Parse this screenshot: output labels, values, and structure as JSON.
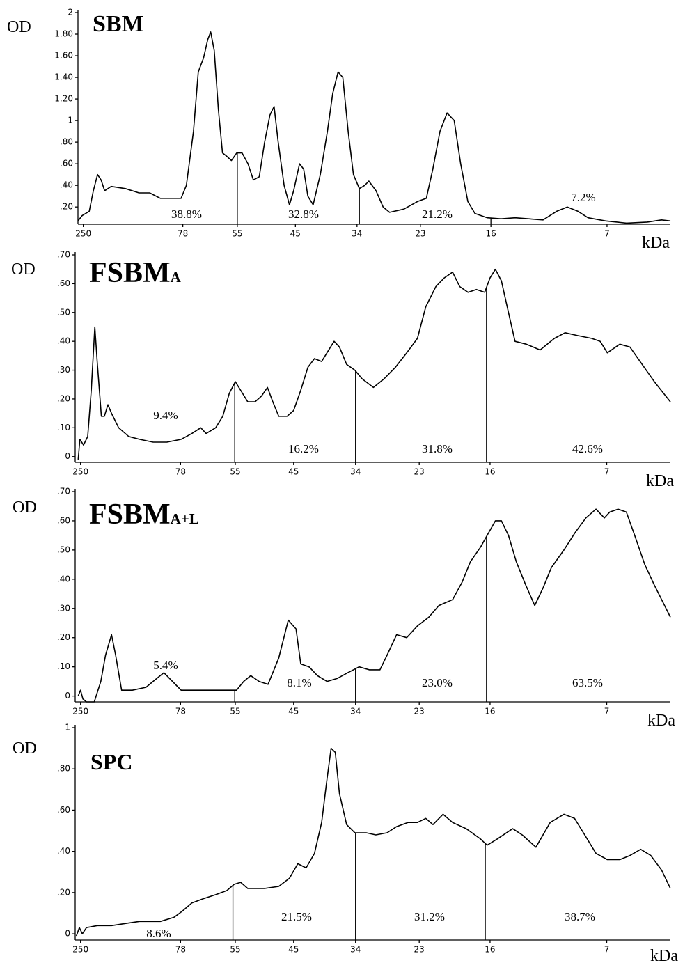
{
  "chart_data": [
    {
      "type": "line",
      "title": "SBM",
      "ylabel": "OD",
      "xlabel": "kDa",
      "color": "#000000",
      "xlim": [
        0,
        100
      ],
      "xticks": [
        {
          "value": 0.9,
          "label": "250"
        },
        {
          "value": 17.7,
          "label": "78"
        },
        {
          "value": 26.9,
          "label": "55"
        },
        {
          "value": 36.7,
          "label": "45"
        },
        {
          "value": 47.1,
          "label": "34"
        },
        {
          "value": 57.8,
          "label": "23"
        },
        {
          "value": 69.7,
          "label": "16"
        },
        {
          "value": 89.3,
          "label": "7"
        }
      ],
      "ylim": [
        0.04,
        2
      ],
      "yticks": [
        {
          "value": 0.2,
          "label": ".20"
        },
        {
          "value": 0.4,
          "label": ".40"
        },
        {
          "value": 0.6,
          "label": ".60"
        },
        {
          "value": 0.8,
          "label": ".80"
        },
        1,
        {
          "value": 1.2,
          "label": "1.20"
        },
        {
          "value": 1.4,
          "label": "1.40"
        },
        {
          "value": 1.6,
          "label": "1.60"
        },
        {
          "value": 1.8,
          "label": "1.80"
        },
        2
      ],
      "dividers": [
        26.9,
        47.5,
        69.7
      ],
      "annotations": [
        "38.8%",
        "32.8%",
        "21.2%",
        "7.2%"
      ],
      "x": [
        0,
        0.7,
        1.9,
        2.6,
        3.3,
        3.9,
        4.5,
        5.6,
        8.0,
        10.3,
        12.1,
        13.9,
        17.4,
        18.3,
        19.5,
        20.3,
        21.2,
        21.9,
        22.4,
        23.0,
        23.7,
        24.4,
        25.1,
        25.9,
        26.8,
        27.7,
        28.7,
        29.6,
        30.6,
        31.5,
        32.4,
        33.1,
        33.8,
        34.8,
        35.7,
        36.4,
        37.4,
        38.1,
        38.8,
        39.7,
        40.9,
        42.1,
        43.0,
        43.9,
        44.7,
        45.6,
        46.5,
        47.5,
        48.4,
        49.1,
        50.3,
        51.5,
        52.6,
        55.0,
        57.3,
        58.8,
        59.9,
        61.1,
        62.3,
        63.5,
        64.6,
        65.8,
        67.0,
        69.1,
        71.4,
        73.8,
        76.1,
        78.5,
        80.8,
        82.6,
        84.4,
        86.1,
        89.1,
        92.6,
        96.1,
        98.5,
        100
      ],
      "values": [
        0.07,
        0.12,
        0.16,
        0.35,
        0.5,
        0.45,
        0.35,
        0.39,
        0.37,
        0.33,
        0.33,
        0.28,
        0.28,
        0.4,
        0.9,
        1.45,
        1.58,
        1.75,
        1.82,
        1.65,
        1.1,
        0.7,
        0.67,
        0.63,
        0.7,
        0.7,
        0.6,
        0.45,
        0.48,
        0.8,
        1.05,
        1.13,
        0.8,
        0.4,
        0.22,
        0.35,
        0.6,
        0.55,
        0.3,
        0.22,
        0.5,
        0.9,
        1.25,
        1.45,
        1.4,
        0.9,
        0.5,
        0.37,
        0.4,
        0.44,
        0.35,
        0.2,
        0.15,
        0.18,
        0.25,
        0.28,
        0.55,
        0.9,
        1.07,
        1.0,
        0.6,
        0.25,
        0.14,
        0.1,
        0.09,
        0.1,
        0.09,
        0.08,
        0.16,
        0.2,
        0.16,
        0.1,
        0.07,
        0.05,
        0.06,
        0.08,
        0.07
      ]
    },
    {
      "type": "line",
      "title": "FSBM",
      "title_subscript": "A",
      "ylabel": "OD",
      "xlabel": "kDa",
      "color": "#000000",
      "xlim": [
        0,
        100
      ],
      "xticks": [
        {
          "value": 0.9,
          "label": "250"
        },
        {
          "value": 17.7,
          "label": "78"
        },
        {
          "value": 26.9,
          "label": "55"
        },
        {
          "value": 36.7,
          "label": "45"
        },
        {
          "value": 47.1,
          "label": "34"
        },
        {
          "value": 57.8,
          "label": "23"
        },
        {
          "value": 69.7,
          "label": "16"
        },
        {
          "value": 89.3,
          "label": "7"
        }
      ],
      "ylim": [
        -0.02,
        0.7
      ],
      "yticks": [
        0,
        {
          "value": 0.1,
          "label": ".10"
        },
        {
          "value": 0.2,
          "label": ".20"
        },
        {
          "value": 0.3,
          "label": ".30"
        },
        {
          "value": 0.4,
          "label": ".40"
        },
        {
          "value": 0.5,
          "label": ".50"
        },
        {
          "value": 0.6,
          "label": ".60"
        },
        {
          "value": 0.7,
          "label": ".70"
        }
      ],
      "dividers": [
        26.8,
        47.1,
        69.1
      ],
      "annotations": [
        "9.4%",
        "16.2%",
        "31.8%",
        "42.6%"
      ],
      "x": [
        0.5,
        0.8,
        1.4,
        2.1,
        2.7,
        3.3,
        3.7,
        4.4,
        4.9,
        5.5,
        6.1,
        7.3,
        9.0,
        10.8,
        13.1,
        15.4,
        17.8,
        19.6,
        21.1,
        22.0,
        23.6,
        24.8,
        25.9,
        26.9,
        27.8,
        29.0,
        30.2,
        31.3,
        32.3,
        33.2,
        34.2,
        35.6,
        36.7,
        37.9,
        39.1,
        40.2,
        41.4,
        42.6,
        43.5,
        44.4,
        45.6,
        47.0,
        48.2,
        50.1,
        51.9,
        53.8,
        55.7,
        57.5,
        58.9,
        60.6,
        62.0,
        63.4,
        64.6,
        66.0,
        67.4,
        68.8,
        69.7,
        70.6,
        71.6,
        72.8,
        73.9,
        75.8,
        78.1,
        80.5,
        82.3,
        84.4,
        86.8,
        88.2,
        89.4,
        91.5,
        93.2,
        94.9,
        97.3,
        100
      ],
      "values": [
        -0.01,
        0.06,
        0.04,
        0.07,
        0.23,
        0.45,
        0.33,
        0.14,
        0.14,
        0.18,
        0.15,
        0.1,
        0.07,
        0.06,
        0.05,
        0.05,
        0.06,
        0.08,
        0.1,
        0.08,
        0.1,
        0.14,
        0.22,
        0.26,
        0.23,
        0.19,
        0.19,
        0.21,
        0.24,
        0.19,
        0.14,
        0.14,
        0.16,
        0.23,
        0.31,
        0.34,
        0.33,
        0.37,
        0.4,
        0.38,
        0.32,
        0.3,
        0.27,
        0.24,
        0.27,
        0.31,
        0.36,
        0.41,
        0.52,
        0.59,
        0.62,
        0.64,
        0.59,
        0.57,
        0.58,
        0.57,
        0.62,
        0.65,
        0.61,
        0.5,
        0.4,
        0.39,
        0.37,
        0.41,
        0.43,
        0.42,
        0.41,
        0.4,
        0.36,
        0.39,
        0.38,
        0.33,
        0.26,
        0.19
      ]
    },
    {
      "type": "line",
      "title": "FSBM",
      "title_subscript": "A+L",
      "ylabel": "OD",
      "xlabel": "kDa",
      "color": "#000000",
      "xlim": [
        0,
        100
      ],
      "xticks": [
        {
          "value": 0.9,
          "label": "250"
        },
        {
          "value": 17.7,
          "label": "78"
        },
        {
          "value": 26.9,
          "label": "55"
        },
        {
          "value": 36.7,
          "label": "45"
        },
        {
          "value": 47.1,
          "label": "34"
        },
        {
          "value": 57.8,
          "label": "23"
        },
        {
          "value": 69.7,
          "label": "16"
        },
        {
          "value": 89.3,
          "label": "7"
        }
      ],
      "ylim": [
        -0.02,
        0.7
      ],
      "yticks": [
        0,
        {
          "value": 0.1,
          "label": ".10"
        },
        {
          "value": 0.2,
          "label": ".20"
        },
        {
          "value": 0.3,
          "label": ".30"
        },
        {
          "value": 0.4,
          "label": ".40"
        },
        {
          "value": 0.5,
          "label": ".50"
        },
        {
          "value": 0.6,
          "label": ".60"
        },
        {
          "value": 0.7,
          "label": ".70"
        }
      ],
      "dividers": [
        26.8,
        47.1,
        69.1
      ],
      "annotations": [
        "5.4%",
        "8.1%",
        "23.0%",
        "63.5%"
      ],
      "x": [
        0.5,
        0.9,
        1.3,
        1.9,
        3.2,
        4.3,
        5.1,
        6.1,
        6.8,
        7.8,
        9.6,
        11.9,
        13.7,
        14.9,
        17.8,
        21.3,
        24.8,
        27.1,
        28.3,
        29.5,
        30.9,
        32.4,
        34.2,
        35.8,
        37.1,
        37.9,
        39.3,
        40.7,
        42.3,
        44.0,
        45.8,
        47.7,
        49.4,
        51.2,
        52.4,
        54.0,
        55.7,
        57.5,
        59.4,
        61.1,
        63.4,
        65.0,
        66.4,
        68.1,
        69.2,
        70.6,
        71.6,
        72.8,
        74.1,
        75.7,
        77.2,
        78.6,
        80.0,
        82.1,
        84.0,
        85.8,
        87.5,
        88.9,
        89.8,
        91.2,
        92.6,
        94.0,
        95.7,
        97.3,
        100
      ],
      "values": [
        0.0,
        0.02,
        -0.01,
        -0.02,
        -0.02,
        0.05,
        0.14,
        0.21,
        0.14,
        0.02,
        0.02,
        0.03,
        0.06,
        0.08,
        0.02,
        0.02,
        0.02,
        0.02,
        0.05,
        0.07,
        0.05,
        0.04,
        0.13,
        0.26,
        0.23,
        0.11,
        0.1,
        0.07,
        0.05,
        0.06,
        0.08,
        0.1,
        0.09,
        0.09,
        0.14,
        0.21,
        0.2,
        0.24,
        0.27,
        0.31,
        0.33,
        0.39,
        0.46,
        0.51,
        0.55,
        0.6,
        0.6,
        0.55,
        0.46,
        0.38,
        0.31,
        0.37,
        0.44,
        0.5,
        0.56,
        0.61,
        0.64,
        0.61,
        0.63,
        0.64,
        0.63,
        0.55,
        0.45,
        0.38,
        0.27
      ]
    },
    {
      "type": "line",
      "title": "SPC",
      "ylabel": "OD",
      "xlabel": "kDa",
      "color": "#000000",
      "xlim": [
        0,
        100
      ],
      "xticks": [
        {
          "value": 0.9,
          "label": "250"
        },
        {
          "value": 17.7,
          "label": "78"
        },
        {
          "value": 26.9,
          "label": "55"
        },
        {
          "value": 36.7,
          "label": "45"
        },
        {
          "value": 47.1,
          "label": "34"
        },
        {
          "value": 57.8,
          "label": "23"
        },
        {
          "value": 69.7,
          "label": "16"
        },
        {
          "value": 89.3,
          "label": "7"
        }
      ],
      "ylim": [
        -0.03,
        1
      ],
      "yticks": [
        0,
        {
          "value": 0.2,
          "label": ".20"
        },
        {
          "value": 0.4,
          "label": ".40"
        },
        {
          "value": 0.6,
          "label": ".60"
        },
        {
          "value": 0.8,
          "label": ".80"
        },
        1
      ],
      "dividers": [
        26.5,
        47.1,
        68.9
      ],
      "annotations": [
        "8.6%",
        "21.5%",
        "31.2%",
        "38.7%"
      ],
      "x": [
        0.2,
        0.7,
        1.2,
        1.9,
        3.7,
        6.1,
        8.4,
        10.8,
        14.3,
        16.6,
        18.0,
        19.6,
        21.5,
        23.6,
        25.5,
        26.7,
        27.8,
        29.0,
        31.8,
        34.2,
        36.0,
        37.4,
        38.8,
        40.2,
        41.4,
        42.3,
        43.0,
        43.7,
        44.4,
        45.6,
        47.0,
        48.9,
        50.5,
        52.4,
        54.0,
        55.9,
        57.5,
        58.9,
        60.1,
        61.8,
        63.4,
        65.7,
        68.1,
        69.2,
        70.9,
        73.5,
        75.1,
        77.4,
        79.8,
        82.1,
        83.9,
        85.6,
        87.5,
        89.4,
        91.5,
        93.2,
        95.0,
        96.7,
        98.5,
        100
      ],
      "values": [
        -0.01,
        0.03,
        0.0,
        0.03,
        0.04,
        0.04,
        0.05,
        0.06,
        0.06,
        0.08,
        0.11,
        0.15,
        0.17,
        0.19,
        0.21,
        0.24,
        0.25,
        0.22,
        0.22,
        0.23,
        0.27,
        0.34,
        0.32,
        0.39,
        0.54,
        0.75,
        0.9,
        0.88,
        0.68,
        0.53,
        0.49,
        0.49,
        0.48,
        0.49,
        0.52,
        0.54,
        0.54,
        0.56,
        0.53,
        0.58,
        0.54,
        0.51,
        0.46,
        0.43,
        0.46,
        0.51,
        0.48,
        0.42,
        0.54,
        0.58,
        0.56,
        0.48,
        0.39,
        0.36,
        0.36,
        0.38,
        0.41,
        0.38,
        0.31,
        0.22
      ]
    }
  ]
}
